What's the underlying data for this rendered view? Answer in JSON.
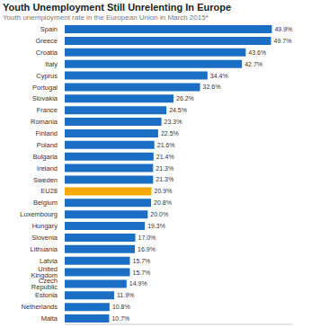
{
  "chart_data": {
    "type": "bar",
    "orientation": "horizontal",
    "title": "Youth Unemployment Still Unrelenting In Europe",
    "subtitle": "Youth unemployment rate in the European Union in March 2015*",
    "categories": [
      "Spain",
      "Greece",
      "Croatia",
      "Italy",
      "Cyprus",
      "Portugal",
      "Slovakia",
      "France",
      "Romania",
      "Finland",
      "Poland",
      "Bulgaria",
      "Ireland",
      "Sweden",
      "EU28",
      "Belgium",
      "Luxembourg",
      "Hungary",
      "Slovenia",
      "Lithuania",
      "Latvia",
      "United Kingdom",
      "Czech Republic",
      "Estonia",
      "Netherlands",
      "Malta"
    ],
    "values": [
      49.9,
      49.7,
      43.6,
      42.7,
      34.4,
      32.6,
      26.2,
      24.5,
      23.3,
      22.5,
      21.6,
      21.4,
      21.3,
      21.3,
      20.9,
      20.8,
      20.0,
      19.3,
      17.0,
      16.9,
      15.7,
      15.7,
      14.9,
      11.9,
      10.8,
      10.7
    ],
    "value_labels": [
      "49.9%",
      "49.7%",
      "43.6%",
      "42.7%",
      "34.4%",
      "32.6%",
      "26.2%",
      "24.5%",
      "23.3%",
      "22.5%",
      "21.6%",
      "21.4%",
      "21.3%",
      "21.3%",
      "20.9%",
      "20.8%",
      "20.0%",
      "19.3%",
      "17.0%",
      "16.9%",
      "15.7%",
      "15.7%",
      "14.9%",
      "11.9%",
      "10.8%",
      "10.7%"
    ],
    "colors": [
      "#1a6fc4",
      "#1a6fc4",
      "#1a6fc4",
      "#1a6fc4",
      "#1a6fc4",
      "#1a6fc4",
      "#1a6fc4",
      "#1a6fc4",
      "#1a6fc4",
      "#1a6fc4",
      "#1a6fc4",
      "#1a6fc4",
      "#1a6fc4",
      "#1a6fc4",
      "#f5a800",
      "#1a6fc4",
      "#1a6fc4",
      "#1a6fc4",
      "#1a6fc4",
      "#1a6fc4",
      "#1a6fc4",
      "#1a6fc4",
      "#1a6fc4",
      "#1a6fc4",
      "#1a6fc4",
      "#1a6fc4"
    ],
    "xlim": [
      0,
      55
    ],
    "data_labels": true,
    "tick_labels": "y",
    "grid": false
  }
}
